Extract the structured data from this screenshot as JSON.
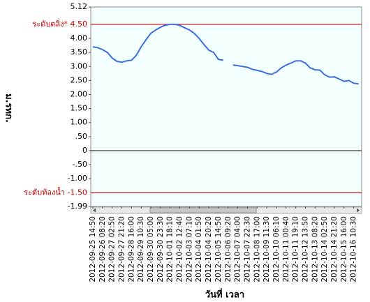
{
  "chart_data": {
    "type": "line",
    "y_label": "ม.รทก.",
    "x_label": "วันที่ เวลา",
    "ylim": [
      -1.99,
      5.12
    ],
    "yticks": [
      {
        "value": 5.12,
        "label": "5.12"
      },
      {
        "value": 4,
        "label": "4.00"
      },
      {
        "value": 3.5,
        "label": "3.50"
      },
      {
        "value": 3,
        "label": "3.00"
      },
      {
        "value": 2.5,
        "label": "2.50"
      },
      {
        "value": 2,
        "label": "2.00"
      },
      {
        "value": 1.5,
        "label": "1.50"
      },
      {
        "value": 1,
        "label": "1.00"
      },
      {
        "value": 0.5,
        "label": ".50"
      },
      0,
      {
        "value": -0.5,
        "label": "-.50"
      },
      {
        "value": -1,
        "label": "-1.00"
      },
      {
        "value": -1.99,
        "label": "-1.99"
      }
    ],
    "reference_lines": [
      {
        "value": 4.5,
        "label": "ระดับตลิ่ง* 4.50",
        "color": "#cc0000"
      },
      {
        "value": -1.5,
        "label": "ระดับท้องน้ำ -1.50",
        "color": "#cc0000"
      }
    ],
    "grid": false,
    "categories": [
      "2012-09-25 14:50",
      null,
      "2012-09-26 08:20",
      null,
      "2012-09-27 02:50",
      null,
      "2012-09-27 21:20",
      null,
      "2012-09-28 16:00",
      null,
      "2012-09-29 10:30",
      null,
      "2012-09-30 05:00",
      null,
      "2012-09-30 23:30",
      null,
      "2012-10-01 18:10",
      null,
      "2012-10-02 12:40",
      null,
      "2012-10-03 07:10",
      null,
      "2012-10-04 01:50",
      null,
      "2012-10-04 20:20",
      null,
      "2012-10-05 14:50",
      null,
      "2012-10-06 09:20",
      null,
      "2012-10-07 04:00",
      null,
      "2012-10-07 22:30",
      null,
      "2012-10-08 17:00",
      null,
      "2012-10-09 11:30",
      null,
      "2012-10-10 06:10",
      null,
      "2012-10-11 00:40",
      null,
      "2012-10-11 19:10",
      null,
      "2012-10-12 13:50",
      null,
      "2012-10-13 08:20",
      null,
      "2012-10-14 02:50",
      null,
      "2012-10-14 21:20",
      null,
      "2012-10-15 16:00",
      null,
      "2012-10-16 10:30",
      null
    ],
    "series": [
      {
        "color": "#3b6fe6",
        "values": [
          3.7,
          3.67,
          3.6,
          3.5,
          3.3,
          3.18,
          3.15,
          3.2,
          3.22,
          3.4,
          3.7,
          3.95,
          4.18,
          4.3,
          4.4,
          4.47,
          4.5,
          4.5,
          4.46,
          4.38,
          4.3,
          4.18,
          4.0,
          3.78,
          3.58,
          3.5,
          3.25,
          3.22,
          null,
          3.05,
          3.03,
          3.0,
          2.97,
          2.9,
          2.86,
          2.82,
          2.75,
          2.72,
          2.8,
          2.95,
          3.05,
          3.12,
          3.2,
          3.2,
          3.12,
          2.95,
          2.88,
          2.87,
          2.7,
          2.62,
          2.63,
          2.55,
          2.47,
          2.5,
          2.4,
          2.38
        ]
      }
    ]
  }
}
